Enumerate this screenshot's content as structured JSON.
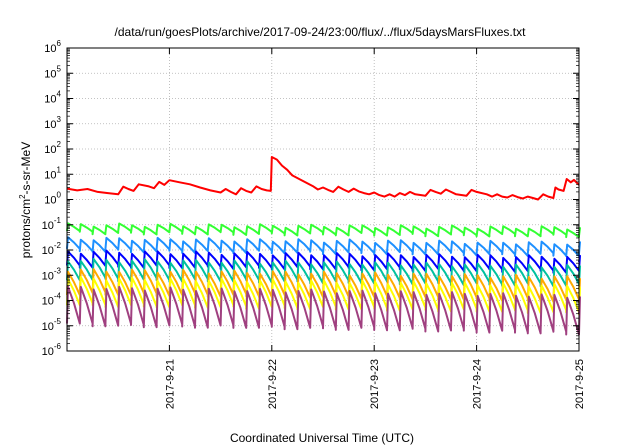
{
  "chart_data": {
    "type": "line",
    "title": "/data/run/goesPlots/archive/2017-09-24/23:00/flux/../flux/5daysMarsFluxes.txt",
    "xlabel": "Coordinated Universal Time (UTC)",
    "ylabel": "protons/cm²-s-sr-MeV",
    "ylabel_parts": {
      "a": "protons/cm",
      "sup": "2",
      "b": "-s-sr-MeV"
    },
    "yscale": "log",
    "ylim": [
      1e-06,
      1000000.0
    ],
    "y_ticks": [
      {
        "base": "10",
        "exp": "-6"
      },
      {
        "base": "10",
        "exp": "-5"
      },
      {
        "base": "10",
        "exp": "-4"
      },
      {
        "base": "10",
        "exp": "-3"
      },
      {
        "base": "10",
        "exp": "-2"
      },
      {
        "base": "10",
        "exp": "-1"
      },
      {
        "base": "10",
        "exp": "0"
      },
      {
        "base": "10",
        "exp": "1"
      },
      {
        "base": "10",
        "exp": "2"
      },
      {
        "base": "10",
        "exp": "3"
      },
      {
        "base": "10",
        "exp": "4"
      },
      {
        "base": "10",
        "exp": "5"
      },
      {
        "base": "10",
        "exp": "6"
      }
    ],
    "xlim": [
      2017.092,
      2017.0925
    ],
    "x_ticks": [
      "2017-9-21",
      "2017-9-22",
      "2017-9-23",
      "2017-9-24",
      "2017-9-25"
    ],
    "x_range_days": [
      20,
      25
    ],
    "x_tick_days": [
      21,
      22,
      23,
      24,
      25
    ],
    "grid": true,
    "series": [
      {
        "color": "#ff0000",
        "points": [
          [
            20.0,
            2.7
          ],
          [
            20.1,
            2.3
          ],
          [
            20.2,
            2.6
          ],
          [
            20.3,
            2.0
          ],
          [
            20.4,
            1.8
          ],
          [
            20.5,
            1.6
          ],
          [
            20.55,
            3.2
          ],
          [
            20.6,
            2.6
          ],
          [
            20.65,
            2.2
          ],
          [
            20.7,
            4.0
          ],
          [
            20.8,
            3.3
          ],
          [
            20.85,
            2.8
          ],
          [
            20.9,
            5.0
          ],
          [
            20.95,
            3.8
          ],
          [
            21.0,
            5.8
          ],
          [
            21.1,
            4.8
          ],
          [
            21.2,
            4.0
          ],
          [
            21.3,
            3.0
          ],
          [
            21.4,
            2.3
          ],
          [
            21.5,
            1.9
          ],
          [
            21.55,
            2.6
          ],
          [
            21.6,
            2.0
          ],
          [
            21.65,
            1.6
          ],
          [
            21.7,
            2.8
          ],
          [
            21.75,
            2.2
          ],
          [
            21.8,
            1.9
          ],
          [
            21.85,
            3.3
          ],
          [
            21.9,
            2.6
          ],
          [
            21.95,
            2.3
          ],
          [
            21.99,
            2.2
          ],
          [
            22.0,
            48
          ],
          [
            22.05,
            38
          ],
          [
            22.1,
            22
          ],
          [
            22.15,
            15
          ],
          [
            22.2,
            9.0
          ],
          [
            22.3,
            5.5
          ],
          [
            22.4,
            3.4
          ],
          [
            22.45,
            2.5
          ],
          [
            22.5,
            3.0
          ],
          [
            22.55,
            2.4
          ],
          [
            22.6,
            2.0
          ],
          [
            22.65,
            3.2
          ],
          [
            22.7,
            2.5
          ],
          [
            22.75,
            2.0
          ],
          [
            22.8,
            2.7
          ],
          [
            22.85,
            2.1
          ],
          [
            22.9,
            1.8
          ],
          [
            22.95,
            1.6
          ],
          [
            23.0,
            1.9
          ],
          [
            23.05,
            1.5
          ],
          [
            23.1,
            1.3
          ],
          [
            23.15,
            1.6
          ],
          [
            23.2,
            1.3
          ],
          [
            23.25,
            1.8
          ],
          [
            23.3,
            1.5
          ],
          [
            23.35,
            2.0
          ],
          [
            23.4,
            1.6
          ],
          [
            23.5,
            1.4
          ],
          [
            23.55,
            2.4
          ],
          [
            23.6,
            2.0
          ],
          [
            23.65,
            1.7
          ],
          [
            23.7,
            2.5
          ],
          [
            23.75,
            2.0
          ],
          [
            23.8,
            1.6
          ],
          [
            23.9,
            1.4
          ],
          [
            23.95,
            2.4
          ],
          [
            24.0,
            2.0
          ],
          [
            24.1,
            1.6
          ],
          [
            24.15,
            1.3
          ],
          [
            24.2,
            1.6
          ],
          [
            24.25,
            1.3
          ],
          [
            24.3,
            1.2
          ],
          [
            24.35,
            1.5
          ],
          [
            24.4,
            1.25
          ],
          [
            24.45,
            1.1
          ],
          [
            24.5,
            1.3
          ],
          [
            24.55,
            1.15
          ],
          [
            24.6,
            1.0
          ],
          [
            24.65,
            1.6
          ],
          [
            24.7,
            1.3
          ],
          [
            24.75,
            1.15
          ],
          [
            24.77,
            3.0
          ],
          [
            24.8,
            2.5
          ],
          [
            24.85,
            2.2
          ],
          [
            24.88,
            6.5
          ],
          [
            24.92,
            4.8
          ],
          [
            24.95,
            6.0
          ],
          [
            25.0,
            3.8
          ]
        ]
      },
      {
        "color": "#33ff33",
        "base": 0.1,
        "drop": 0.5,
        "trend": 0.75,
        "period": 0.125
      },
      {
        "color": "#1e90ff",
        "base": 0.028,
        "drop": 0.35,
        "trend": 0.65,
        "period": 0.125
      },
      {
        "color": "#0000ff",
        "base": 0.0085,
        "drop": 0.28,
        "trend": 0.6,
        "period": 0.125
      },
      {
        "color": "#00c0a0",
        "base": 0.004,
        "drop": 0.18,
        "trend": 0.55,
        "period": 0.125
      },
      {
        "color": "#ffaa00",
        "base": 0.0016,
        "drop": 0.12,
        "trend": 0.5,
        "period": 0.125
      },
      {
        "color": "#ffff00",
        "base": 0.00075,
        "drop": 0.09,
        "trend": 0.5,
        "period": 0.125
      },
      {
        "color": "#a04080",
        "base": 0.00032,
        "drop": 0.035,
        "trend": 0.45,
        "period": 0.125
      }
    ]
  }
}
